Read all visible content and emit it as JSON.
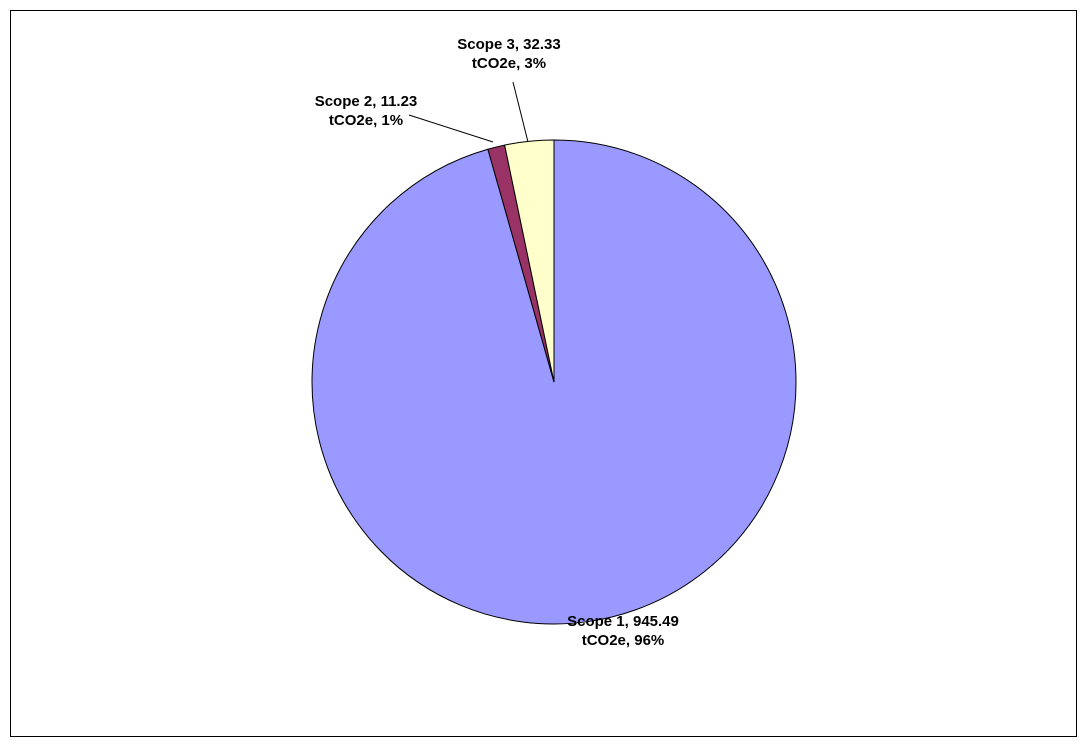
{
  "chart_data": {
    "type": "pie",
    "title": "",
    "start": "12 o'clock",
    "direction": "clockwise",
    "unit": "tCO2e",
    "slices": [
      {
        "name": "Scope 1",
        "value": 945.49,
        "percent": "96%",
        "color": "#9999ff",
        "label_line1": "Scope 1, 945.49",
        "label_line2": "tCO2e, 96%"
      },
      {
        "name": "Scope 2",
        "value": 11.23,
        "percent": "1%",
        "color": "#993366",
        "label_line1": "Scope 2, 11.23",
        "label_line2": "tCO2e, 1%"
      },
      {
        "name": "Scope 3",
        "value": 32.33,
        "percent": "3%",
        "color": "#ffffcc",
        "label_line1": "Scope 3, 32.33",
        "label_line2": "tCO2e, 3%"
      }
    ]
  }
}
